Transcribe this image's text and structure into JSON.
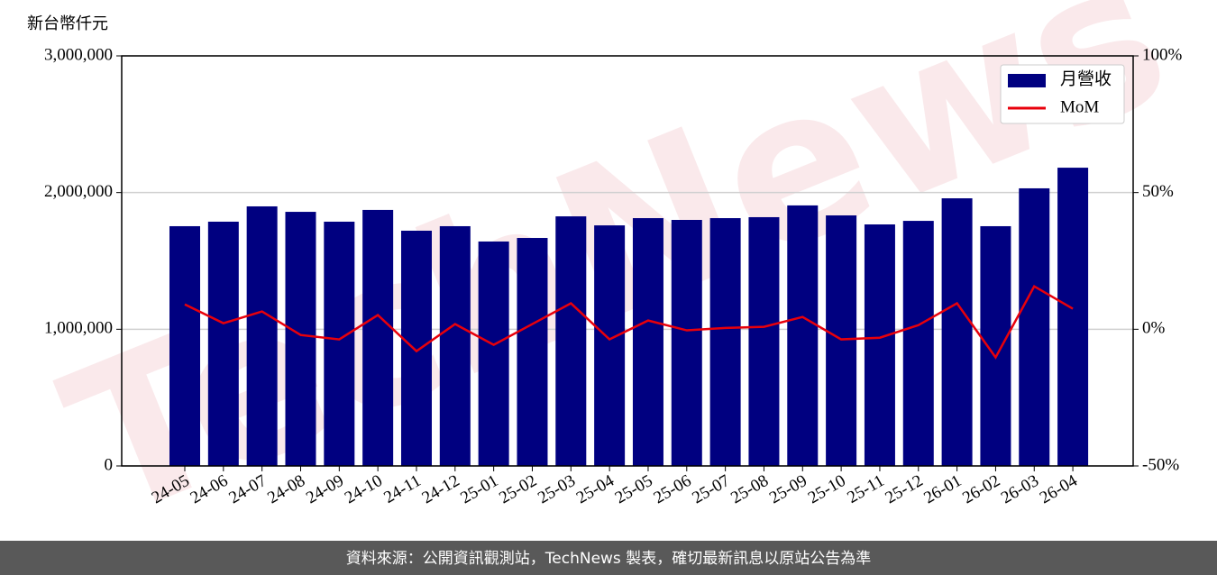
{
  "chart_data": {
    "type": "bar_line",
    "y_axis_label": "新台幣仟元",
    "watermark": "TechNews",
    "categories": [
      "24-05",
      "24-06",
      "24-07",
      "24-08",
      "24-09",
      "24-10",
      "24-11",
      "24-12",
      "25-01",
      "25-02",
      "25-03",
      "25-04",
      "25-05",
      "25-06",
      "25-07",
      "25-08",
      "25-09",
      "25-10",
      "25-11",
      "25-12",
      "26-01",
      "26-02",
      "26-03",
      "26-04"
    ],
    "series": [
      {
        "name": "月營收",
        "color": "#000080",
        "type": "bar",
        "values": [
          1754000,
          1787000,
          1899000,
          1859000,
          1787000,
          1873000,
          1721000,
          1754000,
          1642000,
          1668000,
          1826000,
          1760000,
          1813000,
          1800000,
          1813000,
          1820000,
          1906000,
          1833000,
          1767000,
          1793000,
          1958000,
          1754000,
          2031000,
          2182000
        ]
      },
      {
        "name": "MoM",
        "color": "#e8000b",
        "type": "line",
        "axis": "y2",
        "values": [
          9.1,
          2.2,
          6.5,
          -2.1,
          -3.7,
          5.2,
          -8.0,
          1.9,
          -5.7,
          1.9,
          9.5,
          -3.7,
          3.2,
          -0.4,
          0.5,
          0.9,
          4.5,
          -3.7,
          -3.1,
          1.5,
          9.5,
          -10.3,
          15.7,
          7.5
        ]
      }
    ],
    "ylim": [
      0,
      3000000
    ],
    "yticks": [
      0,
      {
        "value": 1000000,
        "label": "1,000,000"
      },
      {
        "value": 2000000,
        "label": "2,000,000"
      },
      {
        "value": 3000000,
        "label": "3,000,000"
      }
    ],
    "y2lim": [
      -50,
      100
    ],
    "y2ticks": [
      {
        "value": -50,
        "label": "-50%"
      },
      {
        "value": 0,
        "label": "0%"
      },
      {
        "value": 50,
        "label": "50%"
      },
      {
        "value": 100,
        "label": "100%"
      }
    ],
    "grid": true,
    "legend": "upper right",
    "footer": "資料來源：公開資訊觀測站，TechNews 製表，確切最新訊息以原站公告為準"
  }
}
